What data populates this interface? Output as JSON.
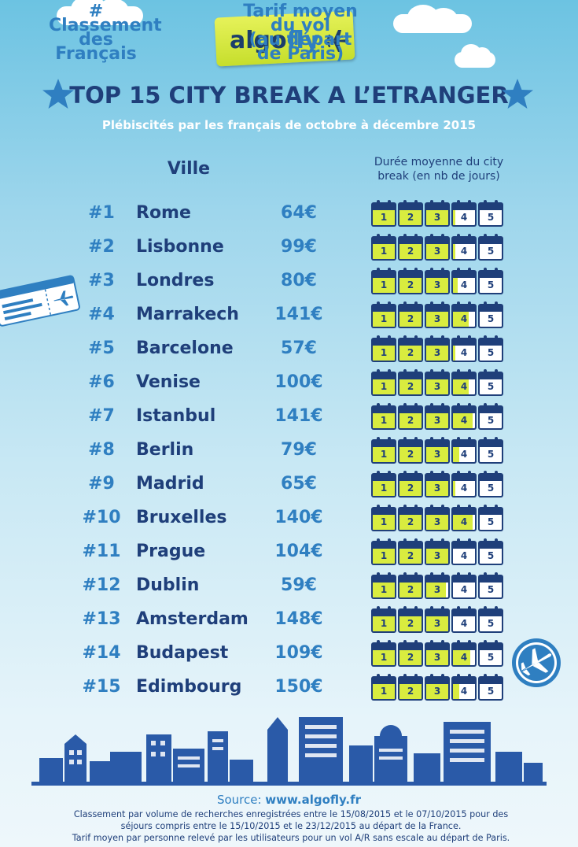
{
  "brand": {
    "part1": "algo",
    "part2": "fly"
  },
  "title": "TOP 15 CITY BREAK A L’ETRANGER",
  "subtitle": "Plébiscités par les français de octobre à décembre 2015",
  "colors": {
    "navy": "#1f3f7a",
    "blue": "#2f7fc1",
    "lime": "#d9ec3f",
    "sky": "#9ed6ec"
  },
  "headers": {
    "rank_line1": "# Classement",
    "rank_line2": "des Français",
    "city": "Ville",
    "price_line1": "Tarif moyen du vol",
    "price_line2": "(au départ de Paris)",
    "duration_line1": "Durée moyenne du city",
    "duration_line2": "break (en nb de jours)"
  },
  "chart_data": {
    "type": "table",
    "columns": [
      "# Classement des Français",
      "Ville",
      "Tarif moyen du vol (au départ de Paris)",
      "Durée moyenne du city break (en nb de jours)"
    ],
    "day_labels": [
      "1",
      "2",
      "3",
      "4",
      "5"
    ],
    "duration_max": 5,
    "rows": [
      {
        "rank": "#1",
        "city": "Rome",
        "price": "64€",
        "days": 3.1
      },
      {
        "rank": "#2",
        "city": "Lisbonne",
        "price": "99€",
        "days": 3.1
      },
      {
        "rank": "#3",
        "city": "Londres",
        "price": "80€",
        "days": 3.2
      },
      {
        "rank": "#4",
        "city": "Marrakech",
        "price": "141€",
        "days": 3.7
      },
      {
        "rank": "#5",
        "city": "Barcelone",
        "price": "57€",
        "days": 3.1
      },
      {
        "rank": "#6",
        "city": "Venise",
        "price": "100€",
        "days": 3.7
      },
      {
        "rank": "#7",
        "city": "Istanbul",
        "price": "141€",
        "days": 3.9
      },
      {
        "rank": "#8",
        "city": "Berlin",
        "price": "79€",
        "days": 3.3
      },
      {
        "rank": "#9",
        "city": "Madrid",
        "price": "65€",
        "days": 3.1
      },
      {
        "rank": "#10",
        "city": "Bruxelles",
        "price": "140€",
        "days": 3.9
      },
      {
        "rank": "#11",
        "city": "Prague",
        "price": "104€",
        "days": 3.0
      },
      {
        "rank": "#12",
        "city": "Dublin",
        "price": "59€",
        "days": 2.9
      },
      {
        "rank": "#13",
        "city": "Amsterdam",
        "price": "148€",
        "days": 3.0
      },
      {
        "rank": "#14",
        "city": "Budapest",
        "price": "109€",
        "days": 3.8
      },
      {
        "rank": "#15",
        "city": "Edimbourg",
        "price": "150€",
        "days": 3.3
      }
    ]
  },
  "footer": {
    "source_label": "Source: ",
    "source_url": "www.algofly.fr",
    "note_line1": "Classement par volume de recherches enregistrées entre le 15/08/2015 et le 07/10/2015 pour des",
    "note_line2": "séjours compris entre le 15/10/2015 et le 23/12/2015 au départ de la France.",
    "note_line3": "Tarif moyen par personne relevé par les utilisateurs pour un vol A/R sans escale au départ de Paris."
  }
}
